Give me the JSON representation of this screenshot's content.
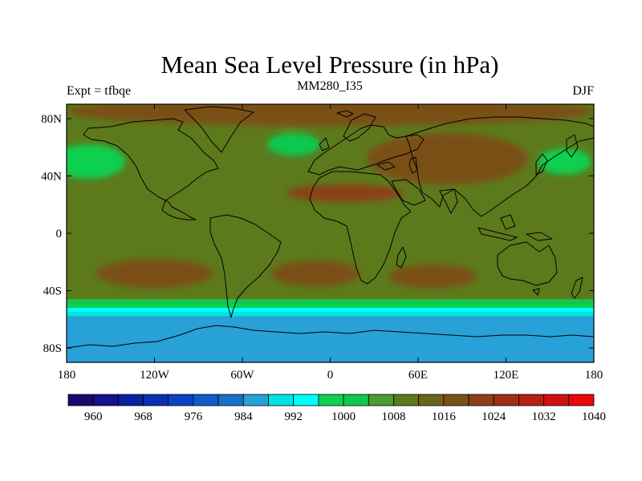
{
  "chart_data": {
    "type": "heatmap",
    "title": "Mean Sea Level Pressure (in hPa)",
    "subtitle_left": "Expt = tfbqe",
    "subtitle_center": "MM280_I35",
    "subtitle_right": "DJF",
    "x_range": [
      -180,
      180
    ],
    "y_range": [
      -90,
      90
    ],
    "x_ticks": [
      {
        "value": -180,
        "label": "180"
      },
      {
        "value": -120,
        "label": "120W"
      },
      {
        "value": -60,
        "label": "60W"
      },
      {
        "value": 0,
        "label": "0"
      },
      {
        "value": 60,
        "label": "60E"
      },
      {
        "value": 120,
        "label": "120E"
      },
      {
        "value": 180,
        "label": "180"
      }
    ],
    "y_ticks": [
      {
        "value": 80,
        "label": "80N"
      },
      {
        "value": 40,
        "label": "40N"
      },
      {
        "value": 0,
        "label": "0"
      },
      {
        "value": -40,
        "label": "40S"
      },
      {
        "value": -80,
        "label": "80S"
      }
    ],
    "colorbar": {
      "units": "hPa",
      "min": 956,
      "step": 4,
      "colors": [
        "#1a0a6e",
        "#10138a",
        "#0b20a0",
        "#0a2fb0",
        "#0a44c0",
        "#0e5cc8",
        "#1870c8",
        "#28a0d8",
        "#00e4e0",
        "#00ffff",
        "#10d050",
        "#10c850",
        "#4a9c2c",
        "#5c7a1c",
        "#6a641c",
        "#7a5018",
        "#8c4018",
        "#a03014",
        "#b82012",
        "#d01010",
        "#e60a0a"
      ],
      "labels": [
        {
          "value": 960,
          "label": "960"
        },
        {
          "value": 968,
          "label": "968"
        },
        {
          "value": 976,
          "label": "976"
        },
        {
          "value": 984,
          "label": "984"
        },
        {
          "value": 992,
          "label": "992"
        },
        {
          "value": 1000,
          "label": "1000"
        },
        {
          "value": 1008,
          "label": "1008"
        },
        {
          "value": 1016,
          "label": "1016"
        },
        {
          "value": 1024,
          "label": "1024"
        },
        {
          "value": 1032,
          "label": "1032"
        },
        {
          "value": 1040,
          "label": "1040"
        }
      ]
    },
    "pressure_fields": {
      "background": 1010,
      "southern_ocean_bands": [
        {
          "lat_range": [
            -49,
            -46
          ],
          "value": 1002
        },
        {
          "lat_range": [
            -52,
            -49
          ],
          "value": 998
        },
        {
          "lat_range": [
            -55,
            -52
          ],
          "value": 994
        },
        {
          "lat_range": [
            -58,
            -55
          ],
          "value": 990
        },
        {
          "lat_range": [
            -90,
            -58
          ],
          "value": 986
        }
      ],
      "regions": [
        {
          "name": "arctic-high",
          "center": [
            0,
            85
          ],
          "radius": [
            180,
            10
          ],
          "value": 1018
        },
        {
          "name": "siberian-high",
          "center": [
            80,
            52
          ],
          "radius": [
            55,
            18
          ],
          "value": 1018
        },
        {
          "name": "sahara-high",
          "center": [
            10,
            28
          ],
          "radius": [
            40,
            6
          ],
          "value": 1022
        },
        {
          "name": "south-pacific-high",
          "center": [
            -120,
            -28
          ],
          "radius": [
            40,
            10
          ],
          "value": 1016
        },
        {
          "name": "south-atlantic-high",
          "center": [
            -10,
            -28
          ],
          "radius": [
            30,
            9
          ],
          "value": 1016
        },
        {
          "name": "indian-ocean-high",
          "center": [
            70,
            -30
          ],
          "radius": [
            30,
            8
          ],
          "value": 1016
        },
        {
          "name": "aleutian-low",
          "center": [
            -165,
            50
          ],
          "radius": [
            25,
            12
          ],
          "value": 999
        },
        {
          "name": "icelandic-low",
          "center": [
            -25,
            62
          ],
          "radius": [
            18,
            8
          ],
          "value": 1000
        },
        {
          "name": "siberia-coast-low",
          "center": [
            160,
            50
          ],
          "radius": [
            18,
            9
          ],
          "value": 999
        }
      ]
    }
  }
}
